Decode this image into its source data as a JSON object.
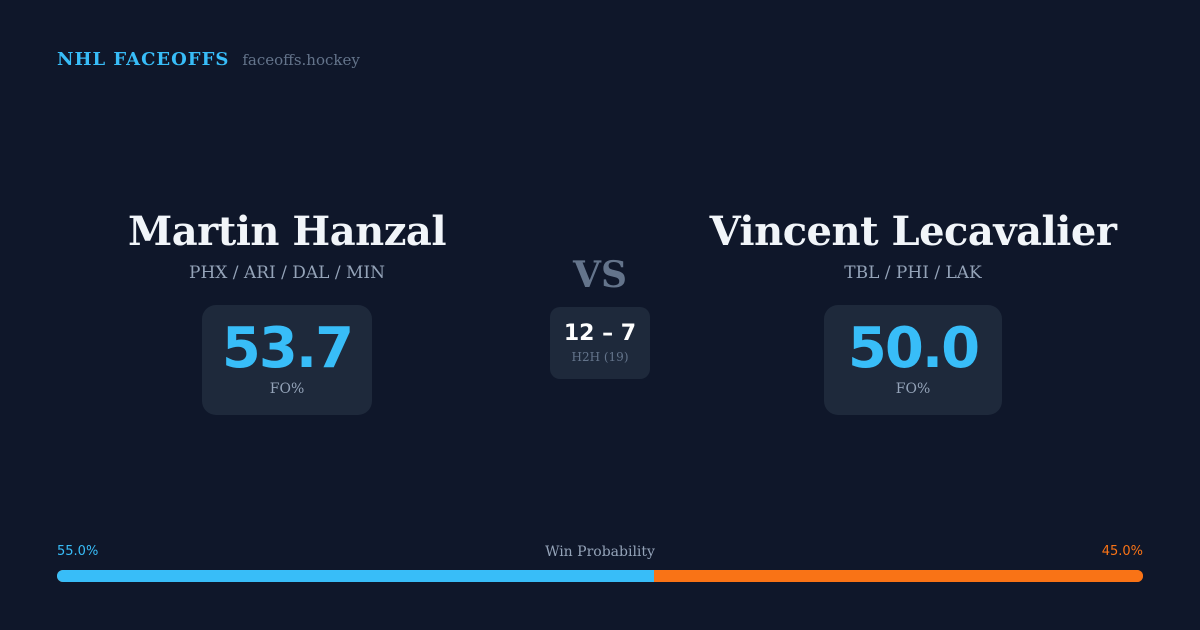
{
  "brand": {
    "name": "NHL FACEOFFS",
    "url": "faceoffs.hockey"
  },
  "player1": {
    "name": "Martin Hanzal",
    "teams": "PHX / ARI / DAL / MIN",
    "fo_pct": "53.7",
    "fo_label": "FO%"
  },
  "player2": {
    "name": "Vincent Lecavalier",
    "teams": "TBL / PHI / LAK",
    "fo_pct": "50.0",
    "fo_label": "FO%"
  },
  "vs": "VS",
  "h2h": {
    "score": "12 – 7",
    "label": "H2H (19)"
  },
  "win_probability": {
    "label": "Win Probability",
    "left": "55.0%",
    "right": "45.0%",
    "left_value": 55.0,
    "right_value": 45.0
  },
  "colors": {
    "background": "#0f172a",
    "accent": "#38bdf8",
    "opponent": "#f97316",
    "card": "#1e293b"
  }
}
